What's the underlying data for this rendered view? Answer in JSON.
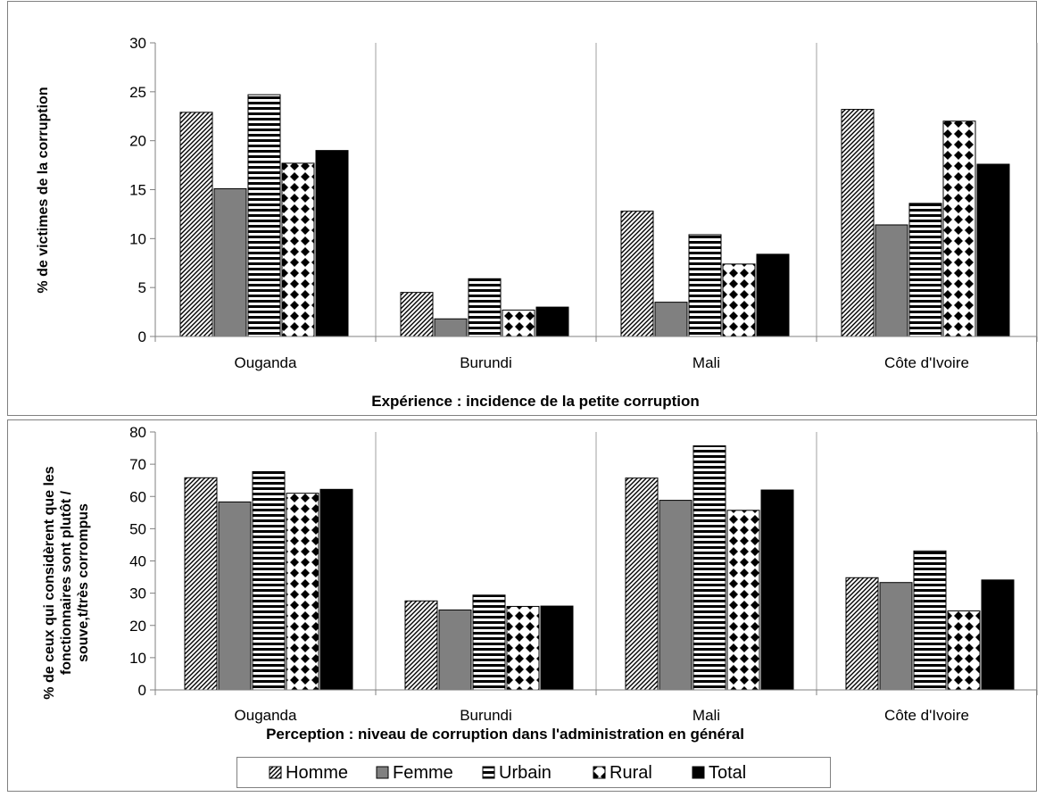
{
  "chart_data": [
    {
      "type": "bar",
      "categories": [
        "Ouganda",
        "Burundi",
        "Mali",
        "Côte d'Ivoire"
      ],
      "series": [
        {
          "name": "Homme",
          "values": [
            22.9,
            4.5,
            12.8,
            23.2
          ]
        },
        {
          "name": "Femme",
          "values": [
            15.1,
            1.8,
            3.5,
            11.4
          ]
        },
        {
          "name": "Urbain",
          "values": [
            24.7,
            5.9,
            10.4,
            13.6
          ]
        },
        {
          "name": "Rural",
          "values": [
            17.7,
            2.7,
            7.4,
            22.0
          ]
        },
        {
          "name": "Total",
          "values": [
            19.0,
            3.0,
            8.4,
            17.6
          ]
        }
      ],
      "title": "",
      "xlabel": "Expérience : incidence de la petite corruption",
      "ylabel": "% de victimes de la corruption",
      "ylim": [
        0,
        30
      ],
      "yticks": [
        "0",
        "5",
        "10",
        "15",
        "20",
        "25",
        "30"
      ],
      "grid": "vertical category separators"
    },
    {
      "type": "bar",
      "categories": [
        "Ouganda",
        "Burundi",
        "Mali",
        "Côte d'Ivoire"
      ],
      "series": [
        {
          "name": "Homme",
          "values": [
            65.8,
            27.6,
            65.7,
            34.8
          ]
        },
        {
          "name": "Femme",
          "values": [
            58.3,
            24.8,
            58.8,
            33.3
          ]
        },
        {
          "name": "Urbain",
          "values": [
            67.7,
            29.4,
            75.7,
            43.1
          ]
        },
        {
          "name": "Rural",
          "values": [
            61.0,
            25.9,
            55.7,
            24.5
          ]
        },
        {
          "name": "Total",
          "values": [
            62.2,
            26.0,
            62.0,
            34.1
          ]
        }
      ],
      "title": "",
      "xlabel": "Perception : niveau de corruption dans l'administration en général",
      "ylabel_lines": [
        "% de ceux qui considèrent que les",
        "fonctionnaires sont plutôt /",
        "souve,t/très corrompus"
      ],
      "ylim": [
        0,
        80
      ],
      "yticks": [
        "0",
        "10",
        "20",
        "30",
        "40",
        "50",
        "60",
        "70",
        "80"
      ],
      "grid": "vertical category separators",
      "legend_placement": "bottom-center"
    }
  ],
  "legend": [
    "Homme",
    "Femme",
    "Urbain",
    "Rural",
    "Total"
  ],
  "colors": {
    "Homme": "#ffffff",
    "Femme": "#808080",
    "Urbain": "#ffffff",
    "Rural": "#ffffff",
    "Total": "#000000"
  }
}
